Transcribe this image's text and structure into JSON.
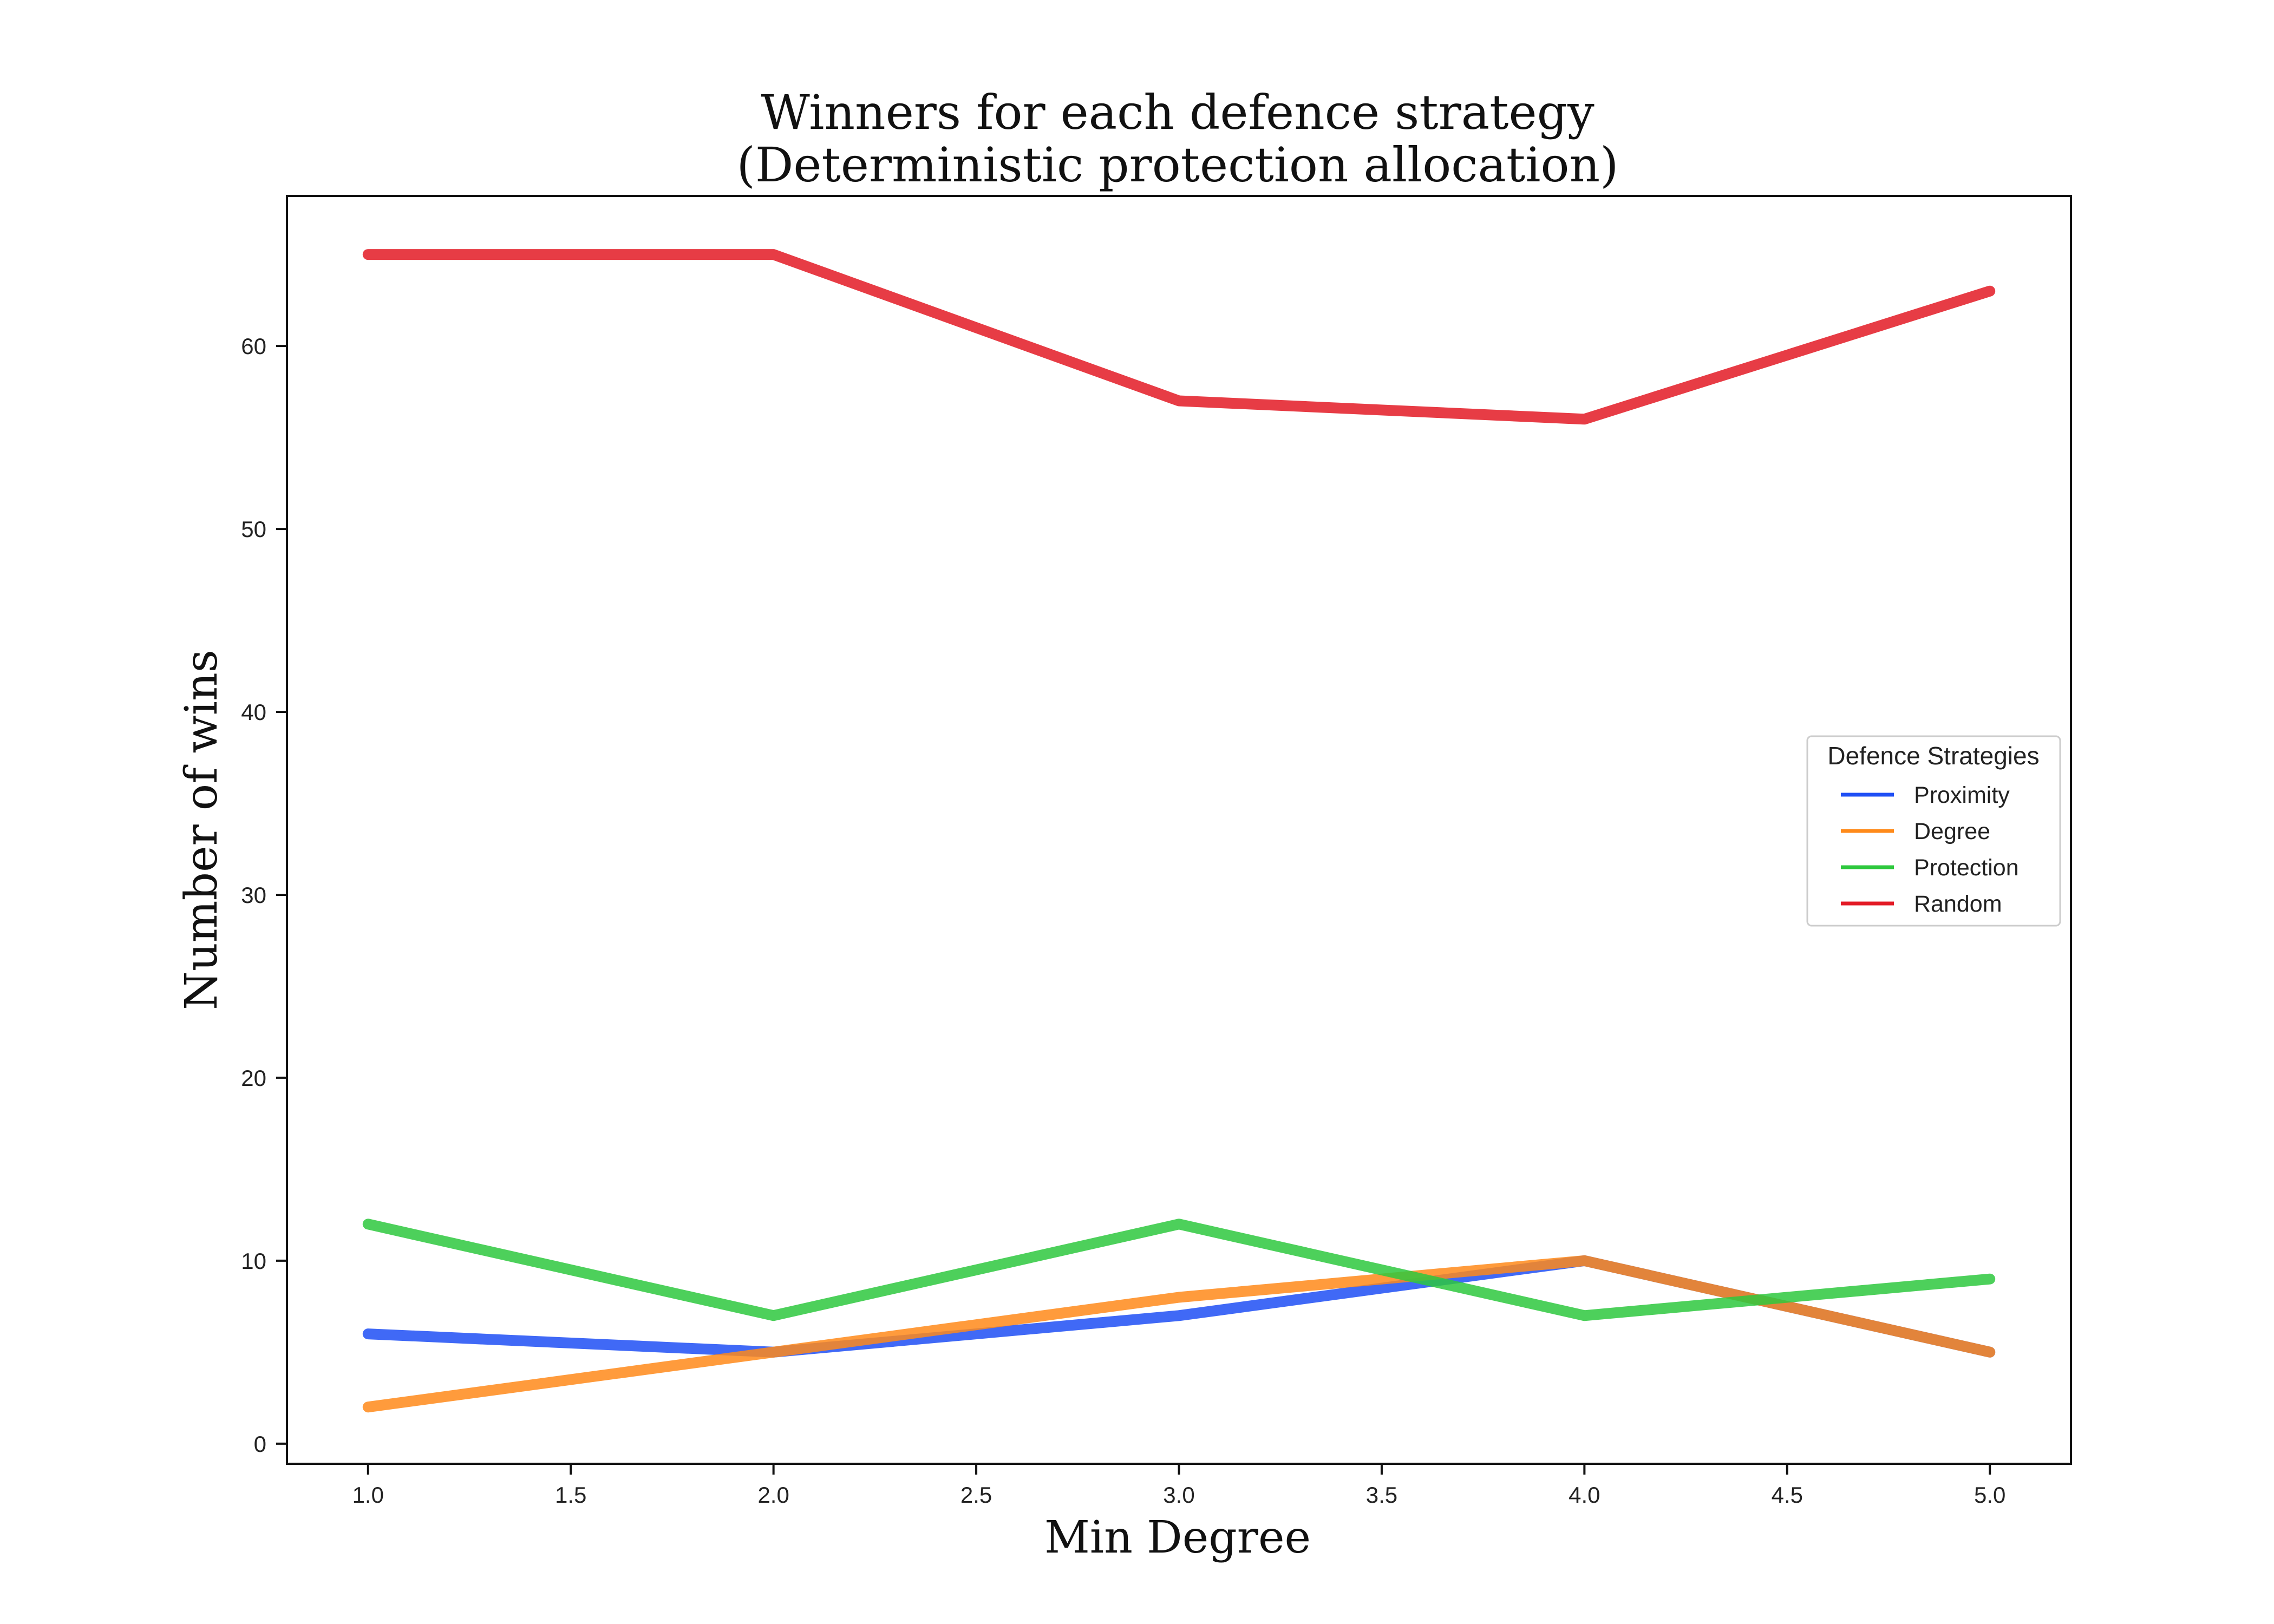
{
  "chart_data": {
    "type": "line",
    "title": "Winners for each defence strategy",
    "subtitle": "(Deterministic protection allocation)",
    "xlabel": "Min Degree",
    "ylabel": "Number of wins",
    "x": [
      1.0,
      2.0,
      3.0,
      4.0,
      5.0
    ],
    "xlim": [
      0.8,
      5.2
    ],
    "ylim": [
      -1.1,
      68.2
    ],
    "x_ticks": [
      "1.0",
      "1.5",
      "2.0",
      "2.5",
      "3.0",
      "3.5",
      "4.0",
      "4.5",
      "5.0"
    ],
    "y_ticks": [
      "0",
      "10",
      "20",
      "30",
      "40",
      "50",
      "60"
    ],
    "grid": false,
    "legend": {
      "title": "Defence Strategies",
      "placement": "center-right"
    },
    "series": [
      {
        "name": "Proximity",
        "color": "#1f4ff5",
        "values": [
          6,
          5,
          7,
          10,
          5
        ]
      },
      {
        "name": "Degree",
        "color": "#ff8a1a",
        "values": [
          2,
          5,
          8,
          10,
          5
        ]
      },
      {
        "name": "Protection",
        "color": "#2ec83e",
        "values": [
          12,
          7,
          12,
          7,
          9
        ]
      },
      {
        "name": "Random",
        "color": "#e31a25",
        "values": [
          65,
          65,
          57,
          56,
          63
        ]
      }
    ]
  }
}
